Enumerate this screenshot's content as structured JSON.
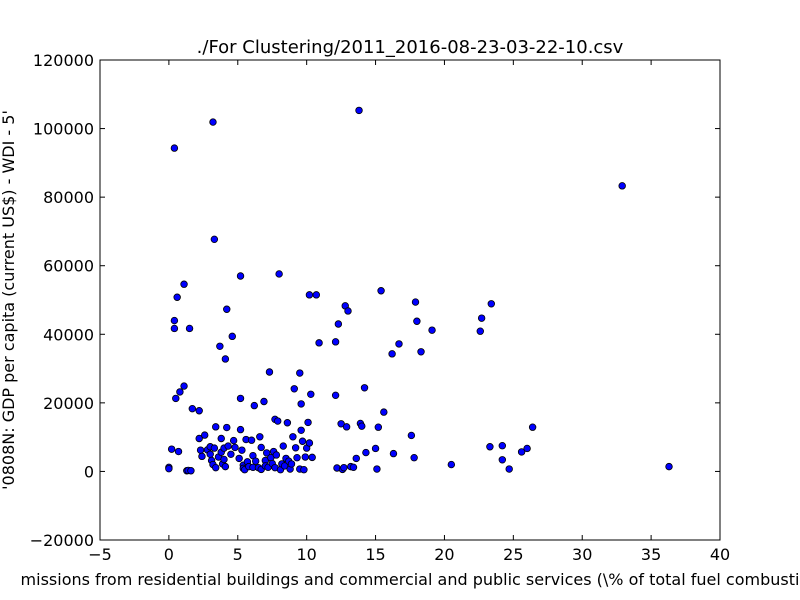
{
  "chart_data": {
    "type": "scatter",
    "title": "./For Clustering/2011_2016-08-23-03-22-10.csv",
    "xlabel": "missions from residential buildings and commercial and public services  (\\% of total fuel combusti",
    "ylabel": "'0808N: GDP per capita  (current US$) - WDI - 5'",
    "xlim": [
      -5,
      40
    ],
    "ylim": [
      -20000,
      120000
    ],
    "xticks": [
      -5,
      0,
      5,
      10,
      15,
      20,
      25,
      30,
      35,
      40
    ],
    "yticks": [
      -20000,
      0,
      20000,
      40000,
      60000,
      80000,
      100000,
      120000
    ],
    "xtick_labels": [
      "−5",
      "0",
      "5",
      "10",
      "15",
      "20",
      "25",
      "30",
      "35",
      "40"
    ],
    "ytick_labels": [
      "−20000",
      "0",
      "20000",
      "40000",
      "60000",
      "80000",
      "100000",
      "120000"
    ],
    "grid": false,
    "marker_color": "#0000ff",
    "points": [
      [
        0.0,
        1200
      ],
      [
        0.0,
        800
      ],
      [
        0.2,
        6500
      ],
      [
        0.4,
        94300
      ],
      [
        0.4,
        44000
      ],
      [
        0.4,
        41700
      ],
      [
        0.5,
        21300
      ],
      [
        0.6,
        50800
      ],
      [
        0.7,
        5800
      ],
      [
        0.8,
        23200
      ],
      [
        1.1,
        54600
      ],
      [
        1.1,
        24900
      ],
      [
        1.3,
        200
      ],
      [
        1.4,
        300
      ],
      [
        1.5,
        41700
      ],
      [
        1.6,
        200
      ],
      [
        1.7,
        18300
      ],
      [
        2.2,
        17700
      ],
      [
        2.2,
        9600
      ],
      [
        2.3,
        6200
      ],
      [
        2.4,
        4400
      ],
      [
        2.6,
        10600
      ],
      [
        2.8,
        6300
      ],
      [
        3.0,
        7200
      ],
      [
        3.0,
        5000
      ],
      [
        3.1,
        3200
      ],
      [
        3.2,
        101900
      ],
      [
        3.2,
        2000
      ],
      [
        3.3,
        6800
      ],
      [
        3.3,
        67700
      ],
      [
        3.4,
        1100
      ],
      [
        3.4,
        13000
      ],
      [
        3.6,
        4200
      ],
      [
        3.7,
        36500
      ],
      [
        3.8,
        9600
      ],
      [
        3.8,
        5600
      ],
      [
        3.9,
        2200
      ],
      [
        4.0,
        6800
      ],
      [
        4.0,
        3500
      ],
      [
        4.1,
        32800
      ],
      [
        4.1,
        1400
      ],
      [
        4.2,
        47300
      ],
      [
        4.2,
        12800
      ],
      [
        4.3,
        7400
      ],
      [
        4.5,
        5000
      ],
      [
        4.6,
        39400
      ],
      [
        4.7,
        9000
      ],
      [
        4.8,
        7000
      ],
      [
        5.1,
        3800
      ],
      [
        5.2,
        57000
      ],
      [
        5.2,
        21300
      ],
      [
        5.2,
        12200
      ],
      [
        5.3,
        6200
      ],
      [
        5.4,
        1800
      ],
      [
        5.4,
        900
      ],
      [
        5.5,
        500
      ],
      [
        5.6,
        9300
      ],
      [
        5.7,
        2800
      ],
      [
        5.8,
        1400
      ],
      [
        6.0,
        9100
      ],
      [
        6.1,
        4600
      ],
      [
        6.1,
        1200
      ],
      [
        6.2,
        19200
      ],
      [
        6.3,
        3000
      ],
      [
        6.5,
        1100
      ],
      [
        6.6,
        10100
      ],
      [
        6.7,
        7000
      ],
      [
        6.7,
        600
      ],
      [
        6.9,
        20400
      ],
      [
        7.0,
        3200
      ],
      [
        7.0,
        1600
      ],
      [
        7.1,
        5400
      ],
      [
        7.2,
        1200
      ],
      [
        7.3,
        29000
      ],
      [
        7.4,
        4000
      ],
      [
        7.5,
        2300
      ],
      [
        7.6,
        5800
      ],
      [
        7.7,
        15200
      ],
      [
        7.7,
        1100
      ],
      [
        7.8,
        4800
      ],
      [
        7.9,
        14700
      ],
      [
        8.0,
        57600
      ],
      [
        8.1,
        500
      ],
      [
        8.2,
        2200
      ],
      [
        8.3,
        7400
      ],
      [
        8.4,
        1600
      ],
      [
        8.5,
        3800
      ],
      [
        8.6,
        14200
      ],
      [
        8.7,
        3000
      ],
      [
        8.8,
        700
      ],
      [
        8.9,
        2200
      ],
      [
        9.0,
        10100
      ],
      [
        9.1,
        24100
      ],
      [
        9.2,
        6900
      ],
      [
        9.3,
        4000
      ],
      [
        9.5,
        28700
      ],
      [
        9.5,
        700
      ],
      [
        9.6,
        19700
      ],
      [
        9.6,
        12000
      ],
      [
        9.7,
        8800
      ],
      [
        9.8,
        500
      ],
      [
        9.9,
        4200
      ],
      [
        10.0,
        6800
      ],
      [
        10.1,
        14300
      ],
      [
        10.2,
        51500
      ],
      [
        10.2,
        8300
      ],
      [
        10.3,
        22500
      ],
      [
        10.4,
        4100
      ],
      [
        10.7,
        51500
      ],
      [
        10.9,
        37500
      ],
      [
        12.1,
        37800
      ],
      [
        12.1,
        22200
      ],
      [
        12.2,
        1000
      ],
      [
        12.3,
        43000
      ],
      [
        12.5,
        13900
      ],
      [
        12.6,
        600
      ],
      [
        12.7,
        1100
      ],
      [
        12.8,
        48300
      ],
      [
        12.9,
        13000
      ],
      [
        13.0,
        46800
      ],
      [
        13.2,
        1400
      ],
      [
        13.4,
        1200
      ],
      [
        13.6,
        3800
      ],
      [
        13.8,
        105300
      ],
      [
        13.9,
        14000
      ],
      [
        14.0,
        13200
      ],
      [
        14.2,
        24400
      ],
      [
        14.3,
        5500
      ],
      [
        15.0,
        6700
      ],
      [
        15.1,
        700
      ],
      [
        15.2,
        12900
      ],
      [
        15.4,
        52700
      ],
      [
        15.6,
        17300
      ],
      [
        16.2,
        34300
      ],
      [
        16.3,
        5200
      ],
      [
        16.7,
        37200
      ],
      [
        17.6,
        10500
      ],
      [
        17.8,
        4000
      ],
      [
        17.9,
        49400
      ],
      [
        18.0,
        43800
      ],
      [
        18.3,
        34900
      ],
      [
        19.1,
        41200
      ],
      [
        20.5,
        2000
      ],
      [
        22.6,
        40900
      ],
      [
        22.7,
        44700
      ],
      [
        23.3,
        7200
      ],
      [
        23.4,
        48900
      ],
      [
        24.2,
        7500
      ],
      [
        24.2,
        3400
      ],
      [
        24.7,
        700
      ],
      [
        25.6,
        5700
      ],
      [
        26.0,
        6700
      ],
      [
        26.4,
        12900
      ],
      [
        32.9,
        83300
      ],
      [
        36.3,
        1400
      ]
    ]
  }
}
